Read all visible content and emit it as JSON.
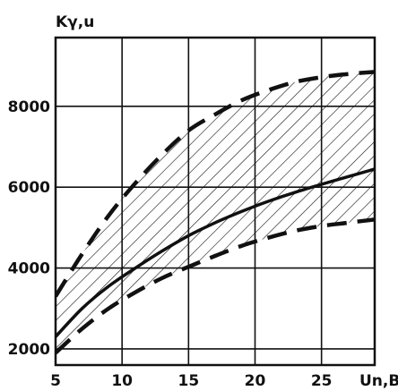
{
  "chart_data": {
    "type": "line",
    "title": "",
    "xlabel": "Un,B",
    "ylabel": "Kγ,u",
    "xlim": [
      5,
      29
    ],
    "ylim": [
      1600,
      9700
    ],
    "grid": true,
    "x_ticks": [
      "5",
      "10",
      "15",
      "20",
      "25"
    ],
    "x_tick_values": [
      5,
      10,
      15,
      20,
      25
    ],
    "y_ticks": [
      "2000",
      "4000",
      "6000",
      "8000"
    ],
    "y_tick_values": [
      2000,
      4000,
      6000,
      8000
    ],
    "series": [
      {
        "style": "solid",
        "x": [
          5,
          7,
          9,
          11,
          13,
          15,
          17,
          19,
          21,
          23,
          25,
          27,
          29
        ],
        "y": [
          2300,
          3000,
          3550,
          4000,
          4420,
          4800,
          5120,
          5400,
          5650,
          5870,
          6070,
          6260,
          6450
        ]
      },
      {
        "style": "dashed",
        "x": [
          5,
          7,
          9,
          11,
          13,
          15,
          17,
          19,
          21,
          23,
          25,
          27,
          29
        ],
        "y": [
          3300,
          4350,
          5300,
          6100,
          6800,
          7400,
          7800,
          8150,
          8400,
          8600,
          8720,
          8800,
          8850
        ]
      },
      {
        "style": "dashed",
        "x": [
          5,
          7,
          9,
          11,
          13,
          15,
          17,
          19,
          21,
          23,
          25,
          27,
          29
        ],
        "y": [
          1900,
          2500,
          3000,
          3400,
          3750,
          4030,
          4300,
          4550,
          4750,
          4920,
          5040,
          5120,
          5200
        ]
      }
    ],
    "shaded_band": "between dashed series"
  }
}
